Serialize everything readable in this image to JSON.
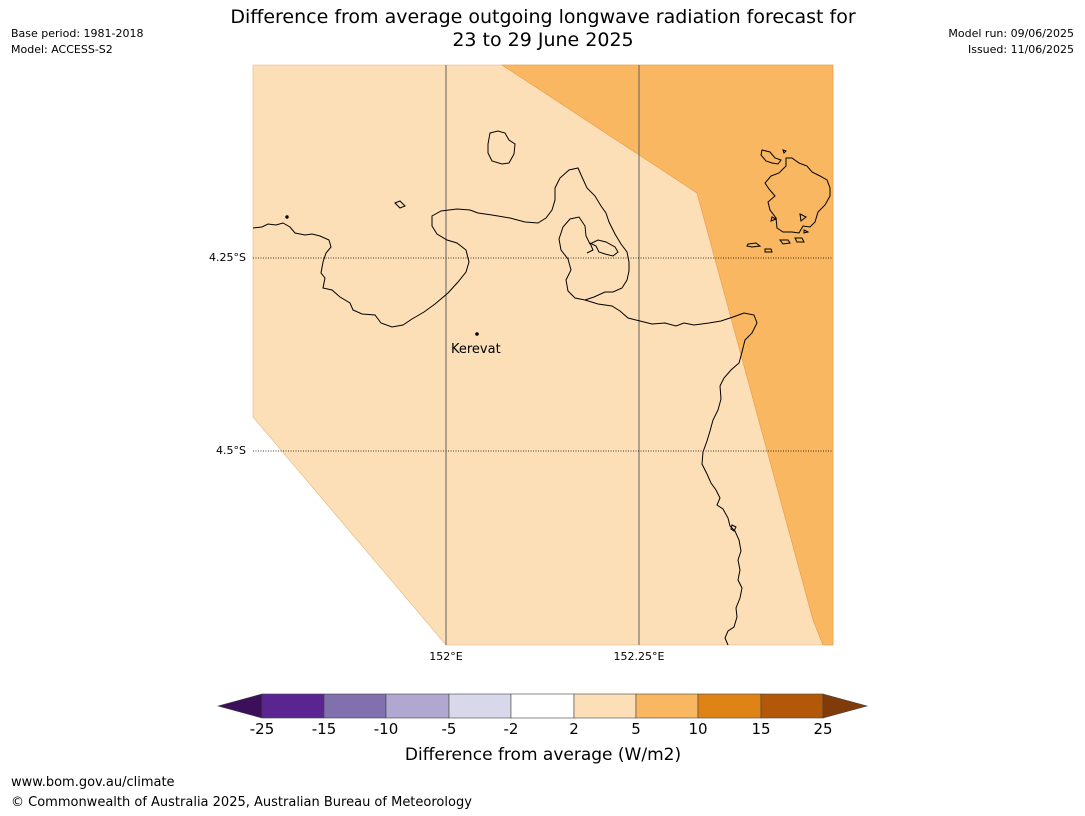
{
  "header": {
    "base_period": "Base period: 1981-2018",
    "model": "Model: ACCESS-S2",
    "title_line1": "Difference from average outgoing longwave radiation forecast for",
    "title_line2": "23 to 29 June 2025",
    "model_run": "Model run: 09/06/2025",
    "issued": "Issued: 11/06/2025"
  },
  "map": {
    "lat_labels": [
      "4.25°S",
      "4.5°S"
    ],
    "lon_labels": [
      "152°E",
      "152.25°E"
    ],
    "place": "Kerevat",
    "colors": {
      "band_2_5": "#fcdfb6",
      "band_5_10": "#f9b762",
      "coast": "#000000",
      "grid": "#555555"
    }
  },
  "legend": {
    "title": "Difference from average (W/m2)",
    "ticks": [
      "-25",
      "-15",
      "-10",
      "-5",
      "-2",
      "2",
      "5",
      "10",
      "15",
      "25"
    ],
    "colors": [
      "#3b0f5a",
      "#5a2590",
      "#8070ad",
      "#b0a8d0",
      "#d8d8ea",
      "#ffffff",
      "#fcdfb6",
      "#f9b762",
      "#e08316",
      "#b35808",
      "#7f3b08"
    ]
  },
  "footer": {
    "url": "www.bom.gov.au/climate",
    "copyright": "© Commonwealth of Australia 2025, Australian Bureau of Meteorology"
  }
}
